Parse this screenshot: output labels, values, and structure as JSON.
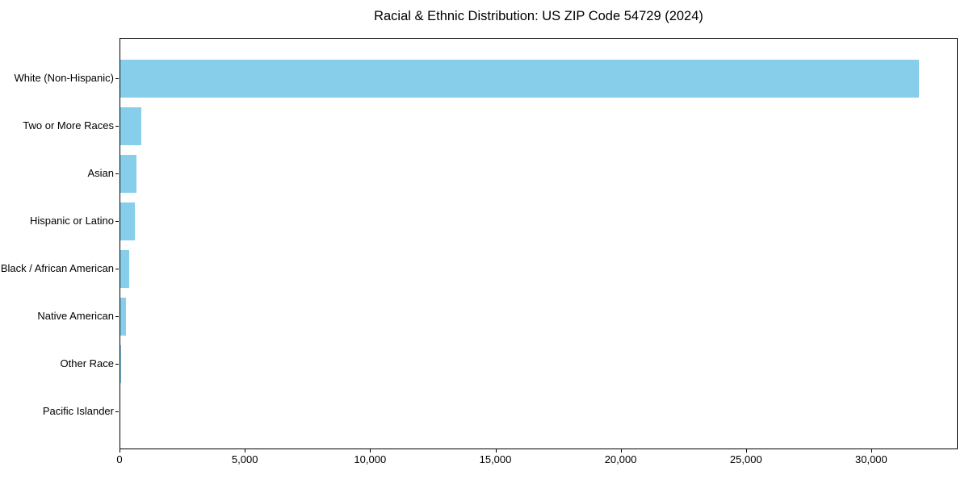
{
  "figure": {
    "background": "#ffffff"
  },
  "chart_data": {
    "type": "bar",
    "orientation": "horizontal",
    "title": "Racial & Ethnic Distribution: US ZIP Code 54729 (2024)",
    "xlabel": "",
    "ylabel": "",
    "categories": [
      "White (Non-Hispanic)",
      "Two or More Races",
      "Asian",
      "Hispanic or Latino",
      "Black / African American",
      "Native American",
      "Other Race",
      "Pacific Islander"
    ],
    "values": [
      31860,
      850,
      660,
      570,
      350,
      215,
      30,
      0
    ],
    "xlim": [
      0,
      33450
    ],
    "x_ticks": [
      0,
      5000,
      10000,
      15000,
      20000,
      25000,
      30000
    ],
    "x_tick_labels": [
      "0",
      "5,000",
      "10,000",
      "15,000",
      "20,000",
      "25,000",
      "30,000"
    ],
    "bar_color": "#87CEEB",
    "axis_color": "#000000",
    "text_color": "#000000",
    "grid": false,
    "legend_position": "none"
  }
}
